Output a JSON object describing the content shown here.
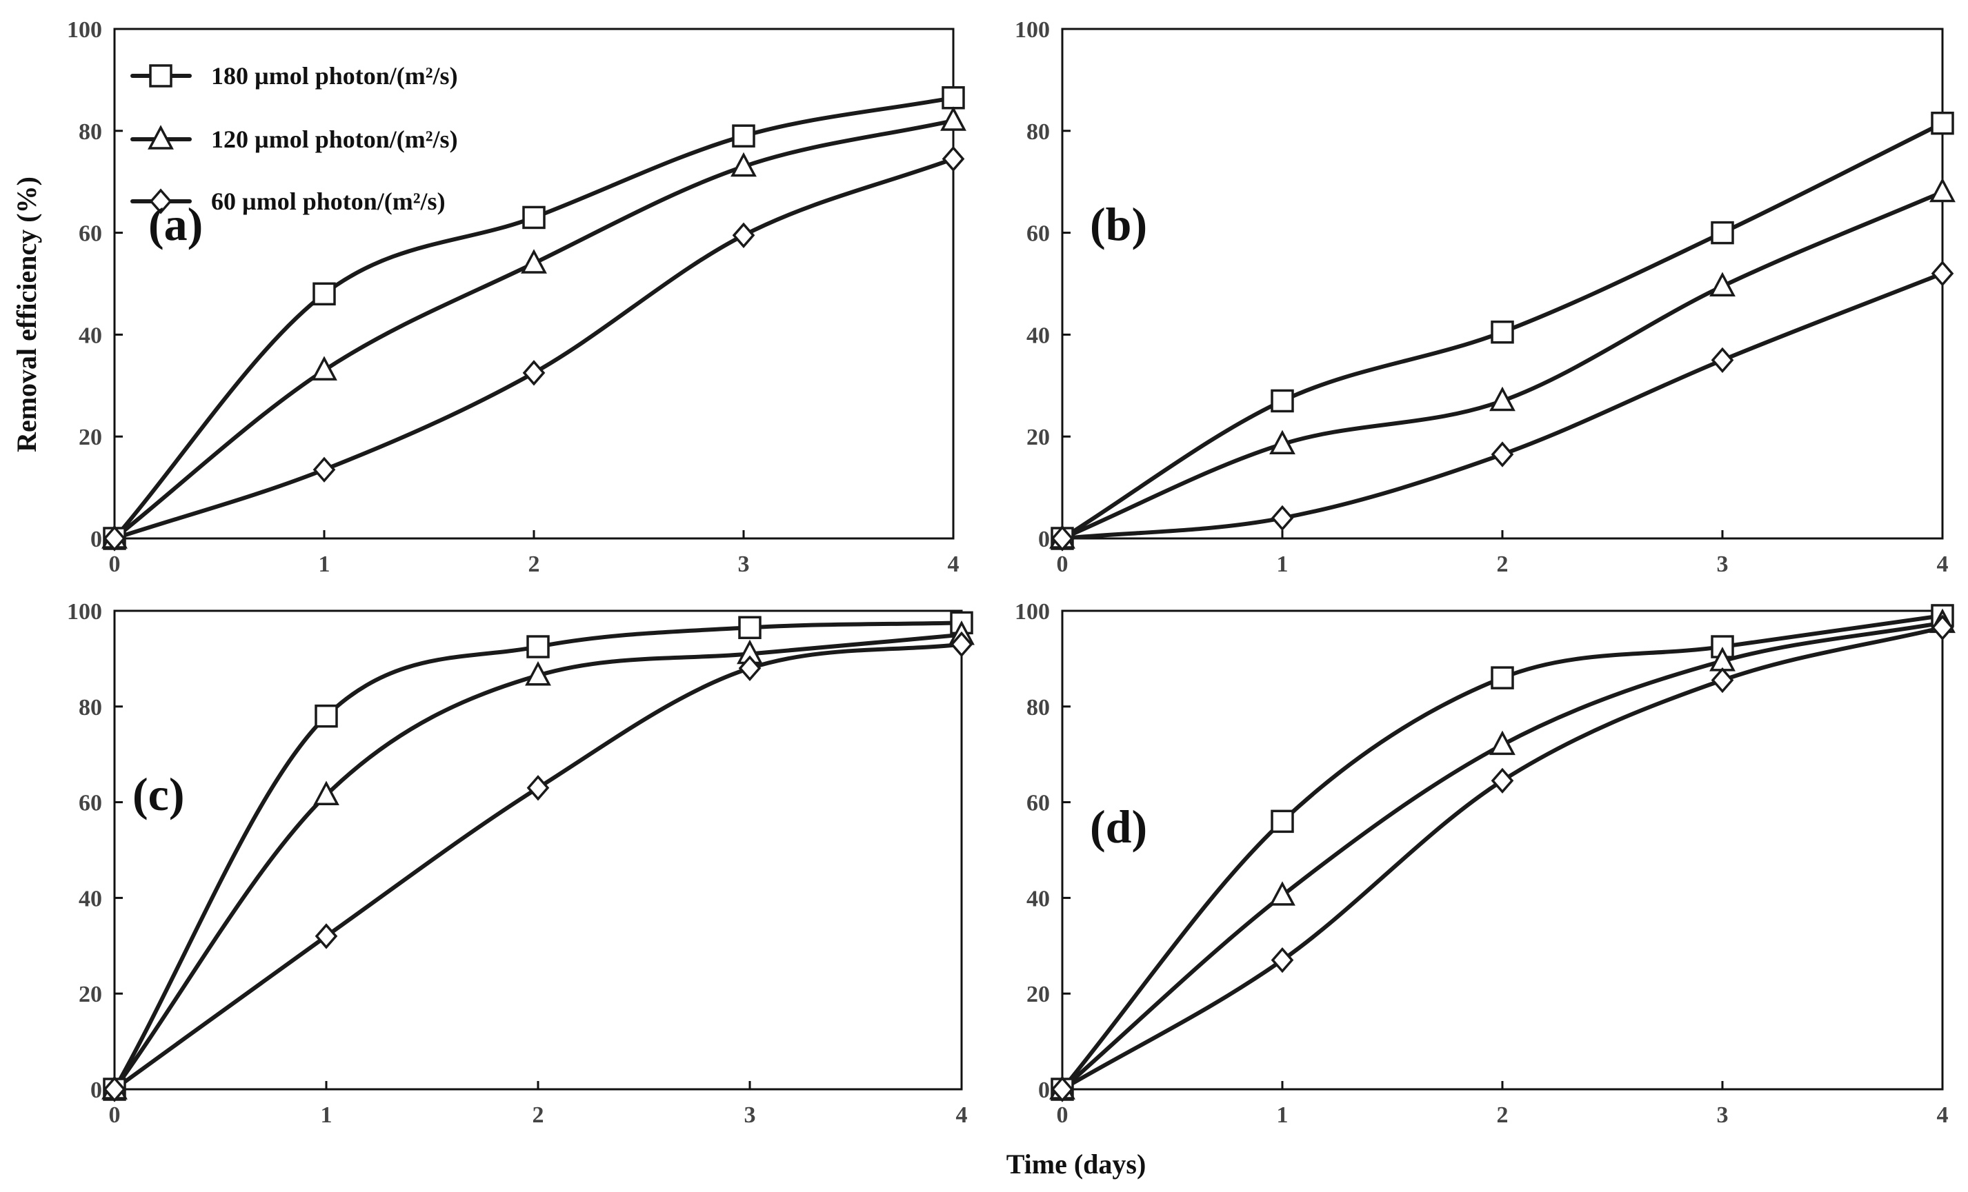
{
  "figure": {
    "ylabel": "Removal efficiency (%)",
    "xlabel": "Time (days)"
  },
  "legend": [
    {
      "label": "180 µmol photon/(m²/s)",
      "marker": "square"
    },
    {
      "label": "120 µmol photon/(m²/s)",
      "marker": "triangle"
    },
    {
      "label": "60 µmol photon/(m²/s)",
      "marker": "diamond"
    }
  ],
  "chart_data": [
    {
      "type": "line",
      "panel": "(a)",
      "x": [
        0,
        1,
        2,
        3,
        4
      ],
      "xlim": [
        0,
        4
      ],
      "ylim": [
        0,
        100
      ],
      "xticks": [
        "0",
        "1",
        "2",
        "3",
        "4"
      ],
      "yticks": [
        "0",
        "20",
        "40",
        "60",
        "80",
        "100"
      ],
      "series": [
        {
          "name": "180 µmol photon/(m²/s)",
          "marker": "square",
          "values": [
            0,
            48,
            63,
            79,
            86.5
          ]
        },
        {
          "name": "120 µmol photon/(m²/s)",
          "marker": "triangle",
          "values": [
            0,
            33,
            54,
            73,
            82
          ]
        },
        {
          "name": "60 µmol photon/(m²/s)",
          "marker": "diamond",
          "values": [
            0,
            13.5,
            32.5,
            59.5,
            74.5
          ]
        }
      ]
    },
    {
      "type": "line",
      "panel": "(b)",
      "x": [
        0,
        1,
        2,
        3,
        4
      ],
      "xlim": [
        0,
        4
      ],
      "ylim": [
        0,
        100
      ],
      "xticks": [
        "0",
        "1",
        "2",
        "3",
        "4"
      ],
      "yticks": [
        "0",
        "20",
        "40",
        "60",
        "80",
        "100"
      ],
      "series": [
        {
          "name": "180 µmol photon/(m²/s)",
          "marker": "square",
          "values": [
            0,
            27,
            40.5,
            60,
            81.5
          ]
        },
        {
          "name": "120 µmol photon/(m²/s)",
          "marker": "triangle",
          "values": [
            0,
            18.5,
            27,
            49.5,
            68
          ]
        },
        {
          "name": "60 µmol photon/(m²/s)",
          "marker": "diamond",
          "values": [
            0,
            4,
            16.5,
            35,
            52
          ]
        }
      ]
    },
    {
      "type": "line",
      "panel": "(c)",
      "x": [
        0,
        1,
        2,
        3,
        4
      ],
      "xlim": [
        0,
        4
      ],
      "ylim": [
        0,
        100
      ],
      "xticks": [
        "0",
        "1",
        "2",
        "3",
        "4"
      ],
      "yticks": [
        "0",
        "20",
        "40",
        "60",
        "80",
        "100"
      ],
      "series": [
        {
          "name": "180 µmol photon/(m²/s)",
          "marker": "square",
          "values": [
            0,
            78,
            92.5,
            96.5,
            97.5
          ]
        },
        {
          "name": "120 µmol photon/(m²/s)",
          "marker": "triangle",
          "values": [
            0,
            61.5,
            86.5,
            91,
            95
          ]
        },
        {
          "name": "60 µmol photon/(m²/s)",
          "marker": "diamond",
          "values": [
            0,
            32,
            63,
            88,
            93
          ]
        }
      ]
    },
    {
      "type": "line",
      "panel": "(d)",
      "x": [
        0,
        1,
        2,
        3,
        4
      ],
      "xlim": [
        0,
        4
      ],
      "ylim": [
        0,
        100
      ],
      "xticks": [
        "0",
        "1",
        "2",
        "3",
        "4"
      ],
      "yticks": [
        "0",
        "20",
        "40",
        "60",
        "80",
        "100"
      ],
      "series": [
        {
          "name": "180 µmol photon/(m²/s)",
          "marker": "square",
          "values": [
            0,
            56,
            86,
            92.5,
            99
          ]
        },
        {
          "name": "120 µmol photon/(m²/s)",
          "marker": "triangle",
          "values": [
            0,
            40.5,
            72,
            89.5,
            97.5
          ]
        },
        {
          "name": "60 µmol photon/(m²/s)",
          "marker": "diamond",
          "values": [
            0,
            27,
            64.5,
            85.5,
            96.5
          ]
        }
      ]
    }
  ]
}
